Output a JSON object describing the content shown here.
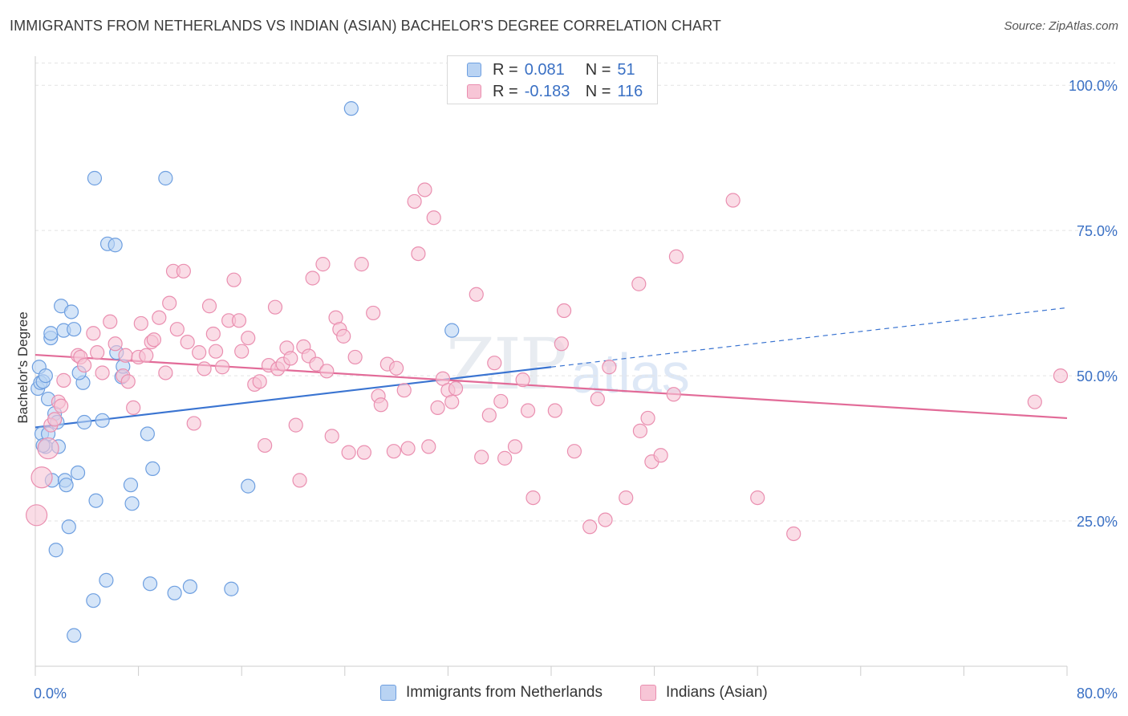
{
  "title": "IMMIGRANTS FROM NETHERLANDS VS INDIAN (ASIAN) BACHELOR'S DEGREE CORRELATION CHART",
  "source": "Source: ZipAtlas.com",
  "watermark": {
    "zip": "ZIP",
    "atlas": "atlas"
  },
  "legend_top": [
    {
      "r_label": "R =",
      "r_value": "0.081",
      "n_label": "N =",
      "n_value": "51"
    },
    {
      "r_label": "R =",
      "r_value": "-0.183",
      "n_label": "N =",
      "n_value": "116"
    }
  ],
  "colors": {
    "blue_fill": "#b9d3f3",
    "blue_stroke": "#6e9fe0",
    "blue_line": "#3a74d1",
    "pink_fill": "#f7c5d6",
    "pink_stroke": "#ea8fb0",
    "pink_line": "#e26b98",
    "tick_label": "#3a70c4",
    "grid": "#e3e3e3"
  },
  "chart_data": {
    "type": "scatter",
    "xlabel": "",
    "ylabel": "Bachelor's Degree",
    "xlim": [
      0,
      80
    ],
    "ylim": [
      0,
      105
    ],
    "x_tick_labels": [
      {
        "value": 0,
        "label": "0.0%"
      },
      {
        "value": 80,
        "label": "80.0%"
      }
    ],
    "y_tick_labels": [
      {
        "value": 25,
        "label": "25.0%"
      },
      {
        "value": 50,
        "label": "50.0%"
      },
      {
        "value": 75,
        "label": "75.0%"
      },
      {
        "value": 100,
        "label": "100.0%"
      }
    ],
    "x_minor_ticks": [
      0,
      8,
      16,
      24,
      32,
      40,
      48,
      56,
      64,
      72,
      80
    ],
    "grid": true,
    "legend_position": "bottom",
    "series": [
      {
        "name": "Immigrants from Netherlands",
        "color": "blue",
        "trend": {
          "x0": 0,
          "y0": 41.1,
          "x1": 40,
          "y1": 51.5,
          "dash_to_x": 80,
          "dash_to_y": 61.7
        },
        "points": [
          [
            0.2,
            47.8
          ],
          [
            0.3,
            51.5
          ],
          [
            0.4,
            48.8
          ],
          [
            0.5,
            40.0
          ],
          [
            0.6,
            49.0
          ],
          [
            0.8,
            37.8
          ],
          [
            0.8,
            50.0
          ],
          [
            1.0,
            40.0
          ],
          [
            1.0,
            46.0
          ],
          [
            1.2,
            56.5
          ],
          [
            1.2,
            57.3
          ],
          [
            1.3,
            32.0
          ],
          [
            1.5,
            43.5
          ],
          [
            1.6,
            20.0
          ],
          [
            1.8,
            37.8
          ],
          [
            2.0,
            62.0
          ],
          [
            2.2,
            57.8
          ],
          [
            2.3,
            32.0
          ],
          [
            2.4,
            31.2
          ],
          [
            2.6,
            24.0
          ],
          [
            2.8,
            61.0
          ],
          [
            3.0,
            58.0
          ],
          [
            3.0,
            5.3
          ],
          [
            3.3,
            33.3
          ],
          [
            3.7,
            48.8
          ],
          [
            3.8,
            42.0
          ],
          [
            4.5,
            11.3
          ],
          [
            4.6,
            84.0
          ],
          [
            4.7,
            28.5
          ],
          [
            5.2,
            42.3
          ],
          [
            5.5,
            14.8
          ],
          [
            5.6,
            72.7
          ],
          [
            6.2,
            72.5
          ],
          [
            6.3,
            54.0
          ],
          [
            6.7,
            49.8
          ],
          [
            6.8,
            51.6
          ],
          [
            7.4,
            31.2
          ],
          [
            7.5,
            28.0
          ],
          [
            8.7,
            40.0
          ],
          [
            8.9,
            14.2
          ],
          [
            9.1,
            34.0
          ],
          [
            10.1,
            84.0
          ],
          [
            10.8,
            12.6
          ],
          [
            12.0,
            13.7
          ],
          [
            15.2,
            13.3
          ],
          [
            16.5,
            31.0
          ],
          [
            24.5,
            96.0
          ],
          [
            32.3,
            57.8
          ],
          [
            1.7,
            42.0
          ],
          [
            0.6,
            38.0
          ],
          [
            3.4,
            50.5
          ]
        ]
      },
      {
        "name": "Indians (Asian)",
        "color": "pink",
        "trend": {
          "x0": 0,
          "y0": 53.6,
          "x1": 80,
          "y1": 42.7
        },
        "points": [
          [
            0.1,
            26.0
          ],
          [
            0.5,
            32.5
          ],
          [
            1.0,
            37.5
          ],
          [
            1.2,
            41.5
          ],
          [
            1.5,
            42.5
          ],
          [
            1.8,
            45.5
          ],
          [
            2.0,
            44.8
          ],
          [
            2.2,
            49.2
          ],
          [
            3.3,
            53.5
          ],
          [
            3.5,
            53.2
          ],
          [
            3.8,
            51.8
          ],
          [
            4.5,
            57.3
          ],
          [
            4.8,
            54.0
          ],
          [
            5.2,
            50.5
          ],
          [
            5.8,
            59.3
          ],
          [
            6.2,
            55.5
          ],
          [
            6.8,
            50.0
          ],
          [
            7.0,
            53.5
          ],
          [
            7.2,
            49.0
          ],
          [
            7.6,
            44.5
          ],
          [
            8.0,
            53.2
          ],
          [
            8.2,
            59.0
          ],
          [
            8.6,
            53.5
          ],
          [
            9.0,
            55.8
          ],
          [
            9.2,
            56.2
          ],
          [
            9.6,
            60.0
          ],
          [
            10.1,
            50.5
          ],
          [
            10.4,
            62.5
          ],
          [
            10.7,
            68.0
          ],
          [
            11.0,
            58.0
          ],
          [
            11.5,
            68.0
          ],
          [
            11.8,
            55.8
          ],
          [
            12.3,
            41.8
          ],
          [
            12.7,
            54.0
          ],
          [
            13.1,
            51.2
          ],
          [
            13.5,
            62.0
          ],
          [
            13.8,
            57.2
          ],
          [
            14.0,
            54.2
          ],
          [
            14.5,
            51.5
          ],
          [
            15.0,
            59.5
          ],
          [
            15.4,
            66.5
          ],
          [
            15.8,
            59.5
          ],
          [
            16.0,
            54.2
          ],
          [
            16.5,
            56.5
          ],
          [
            17.0,
            48.5
          ],
          [
            17.4,
            49.0
          ],
          [
            17.8,
            38.0
          ],
          [
            18.1,
            51.8
          ],
          [
            18.6,
            61.8
          ],
          [
            18.8,
            51.2
          ],
          [
            19.2,
            52.0
          ],
          [
            19.5,
            54.8
          ],
          [
            19.8,
            53.0
          ],
          [
            20.2,
            41.5
          ],
          [
            20.5,
            32.0
          ],
          [
            20.8,
            55.0
          ],
          [
            21.2,
            53.4
          ],
          [
            21.5,
            66.8
          ],
          [
            21.8,
            52.0
          ],
          [
            22.3,
            69.2
          ],
          [
            22.6,
            50.8
          ],
          [
            23.0,
            39.6
          ],
          [
            23.3,
            60.0
          ],
          [
            23.6,
            58.0
          ],
          [
            23.9,
            56.8
          ],
          [
            24.3,
            36.8
          ],
          [
            24.8,
            53.2
          ],
          [
            25.3,
            69.2
          ],
          [
            25.5,
            36.8
          ],
          [
            26.2,
            60.8
          ],
          [
            26.6,
            46.5
          ],
          [
            26.8,
            45.0
          ],
          [
            27.3,
            52.0
          ],
          [
            27.8,
            37.0
          ],
          [
            28.0,
            51.3
          ],
          [
            28.6,
            47.5
          ],
          [
            28.9,
            37.5
          ],
          [
            29.4,
            80.0
          ],
          [
            29.7,
            71.0
          ],
          [
            30.2,
            82.0
          ],
          [
            30.5,
            37.8
          ],
          [
            30.9,
            77.2
          ],
          [
            31.2,
            44.5
          ],
          [
            31.6,
            49.5
          ],
          [
            32.0,
            47.5
          ],
          [
            32.3,
            45.5
          ],
          [
            32.6,
            47.8
          ],
          [
            34.2,
            64.0
          ],
          [
            34.6,
            36.0
          ],
          [
            35.2,
            43.2
          ],
          [
            35.6,
            52.2
          ],
          [
            36.1,
            45.6
          ],
          [
            36.4,
            35.8
          ],
          [
            37.2,
            37.8
          ],
          [
            37.8,
            49.3
          ],
          [
            38.2,
            44.0
          ],
          [
            38.6,
            29.0
          ],
          [
            40.3,
            44.0
          ],
          [
            40.8,
            55.5
          ],
          [
            41.0,
            61.2
          ],
          [
            41.8,
            37.0
          ],
          [
            43.0,
            24.0
          ],
          [
            43.6,
            46.0
          ],
          [
            44.2,
            25.2
          ],
          [
            44.5,
            51.5
          ],
          [
            45.8,
            29.0
          ],
          [
            46.8,
            65.8
          ],
          [
            46.9,
            40.5
          ],
          [
            47.5,
            42.7
          ],
          [
            47.8,
            35.2
          ],
          [
            48.5,
            36.3
          ],
          [
            49.5,
            46.8
          ],
          [
            49.7,
            70.5
          ],
          [
            54.1,
            80.2
          ],
          [
            56.0,
            29.0
          ],
          [
            58.8,
            22.8
          ],
          [
            77.5,
            45.5
          ],
          [
            79.5,
            50.0
          ]
        ]
      }
    ]
  },
  "bottom_legend": [
    "Immigrants from Netherlands",
    "Indians (Asian)"
  ]
}
